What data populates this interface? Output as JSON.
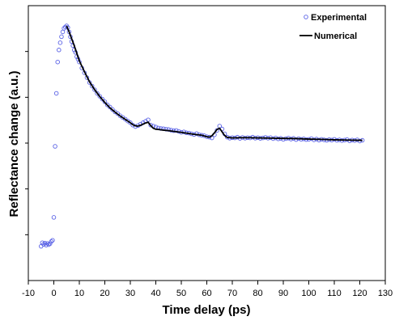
{
  "chart_data": {
    "type": "scatter",
    "title": "",
    "xlabel": "Time delay (ps)",
    "ylabel": "Reflectance change (a.u.)",
    "xlim": [
      -10,
      130
    ],
    "ylim": [
      0,
      1
    ],
    "x_ticks": [
      "-10",
      "0",
      "10",
      "20",
      "30",
      "40",
      "50",
      "60",
      "70",
      "80",
      "90",
      "100",
      "110",
      "120",
      "130"
    ],
    "y_ticklabels_shown": false,
    "grid": false,
    "legend": {
      "position": "top-right",
      "entries": [
        "Experimental",
        "Numerical"
      ]
    },
    "colors": {
      "experimental": "#5b63e6",
      "numerical": "#000000",
      "frame": "#000000"
    },
    "series": [
      {
        "name": "Experimental",
        "marker": "open-circle",
        "x": [
          -5,
          -4.5,
          -4,
          -3.5,
          -3,
          -2.5,
          -2,
          -1.5,
          -1,
          -0.5,
          0,
          0.5,
          1,
          1.5,
          2,
          2.5,
          3,
          3.5,
          4,
          4.5,
          5,
          5.5,
          6,
          6.5,
          7,
          7.5,
          8,
          8.5,
          9,
          9.5,
          10,
          11,
          12,
          13,
          14,
          15,
          16,
          17,
          18,
          19,
          20,
          21,
          22,
          23,
          24,
          25,
          26,
          27,
          28,
          29,
          30,
          31,
          32,
          33,
          34,
          35,
          36,
          37,
          38,
          39,
          40,
          41,
          42,
          43,
          44,
          45,
          46,
          47,
          48,
          49,
          50,
          51,
          52,
          53,
          54,
          55,
          56,
          57,
          58,
          59,
          60,
          61,
          62,
          63,
          64,
          65,
          66,
          67,
          68,
          69,
          70,
          71,
          72,
          73,
          74,
          75,
          76,
          77,
          78,
          79,
          80,
          81,
          82,
          83,
          84,
          85,
          86,
          87,
          88,
          89,
          90,
          91,
          92,
          93,
          94,
          95,
          96,
          97,
          98,
          99,
          100,
          101,
          102,
          103,
          104,
          105,
          106,
          107,
          108,
          109,
          110,
          111,
          112,
          113,
          114,
          115,
          116,
          117,
          118,
          119,
          120,
          121
        ],
        "y": [
          0.085,
          0.1,
          0.093,
          0.098,
          0.09,
          0.097,
          0.092,
          0.096,
          0.105,
          0.11,
          0.205,
          0.5,
          0.72,
          0.85,
          0.9,
          0.93,
          0.955,
          0.975,
          0.99,
          0.995,
          1.0,
          0.993,
          0.975,
          0.955,
          0.935,
          0.918,
          0.9,
          0.89,
          0.872,
          0.862,
          0.85,
          0.825,
          0.805,
          0.785,
          0.765,
          0.75,
          0.735,
          0.72,
          0.708,
          0.696,
          0.685,
          0.672,
          0.663,
          0.653,
          0.643,
          0.636,
          0.627,
          0.62,
          0.613,
          0.605,
          0.598,
          0.588,
          0.582,
          0.586,
          0.592,
          0.598,
          0.604,
          0.61,
          0.588,
          0.584,
          0.58,
          0.576,
          0.574,
          0.573,
          0.571,
          0.57,
          0.567,
          0.565,
          0.566,
          0.562,
          0.558,
          0.56,
          0.556,
          0.555,
          0.552,
          0.549,
          0.553,
          0.548,
          0.546,
          0.544,
          0.54,
          0.538,
          0.535,
          0.548,
          0.566,
          0.584,
          0.572,
          0.552,
          0.538,
          0.534,
          0.536,
          0.535,
          0.538,
          0.533,
          0.537,
          0.534,
          0.536,
          0.535,
          0.538,
          0.534,
          0.536,
          0.533,
          0.535,
          0.537,
          0.534,
          0.536,
          0.532,
          0.535,
          0.531,
          0.533,
          0.529,
          0.532,
          0.534,
          0.53,
          0.533,
          0.528,
          0.532,
          0.529,
          0.531,
          0.528,
          0.529,
          0.532,
          0.527,
          0.53,
          0.526,
          0.529,
          0.527,
          0.525,
          0.528,
          0.526,
          0.529,
          0.525,
          0.527,
          0.524,
          0.526,
          0.528,
          0.523,
          0.526,
          0.524,
          0.527,
          0.522,
          0.525
        ]
      },
      {
        "name": "Numerical",
        "marker": "line",
        "x": [
          5,
          6,
          8,
          10,
          12,
          14,
          16,
          18,
          20,
          22,
          24,
          26,
          28,
          30,
          31,
          32,
          33,
          34,
          35,
          36,
          37,
          38,
          39,
          40,
          41,
          43,
          45,
          50,
          55,
          58,
          60,
          61,
          62,
          63,
          64,
          65,
          66,
          67,
          68,
          70,
          75,
          80,
          85,
          90,
          95,
          100,
          105,
          110,
          115,
          121
        ],
        "y": [
          1.0,
          0.975,
          0.918,
          0.855,
          0.81,
          0.768,
          0.735,
          0.707,
          0.682,
          0.66,
          0.642,
          0.626,
          0.612,
          0.598,
          0.59,
          0.585,
          0.584,
          0.587,
          0.592,
          0.597,
          0.6,
          0.586,
          0.575,
          0.571,
          0.57,
          0.567,
          0.565,
          0.558,
          0.55,
          0.546,
          0.54,
          0.538,
          0.544,
          0.556,
          0.57,
          0.575,
          0.56,
          0.545,
          0.537,
          0.535,
          0.536,
          0.535,
          0.534,
          0.533,
          0.532,
          0.53,
          0.529,
          0.527,
          0.526,
          0.525
        ]
      }
    ]
  }
}
